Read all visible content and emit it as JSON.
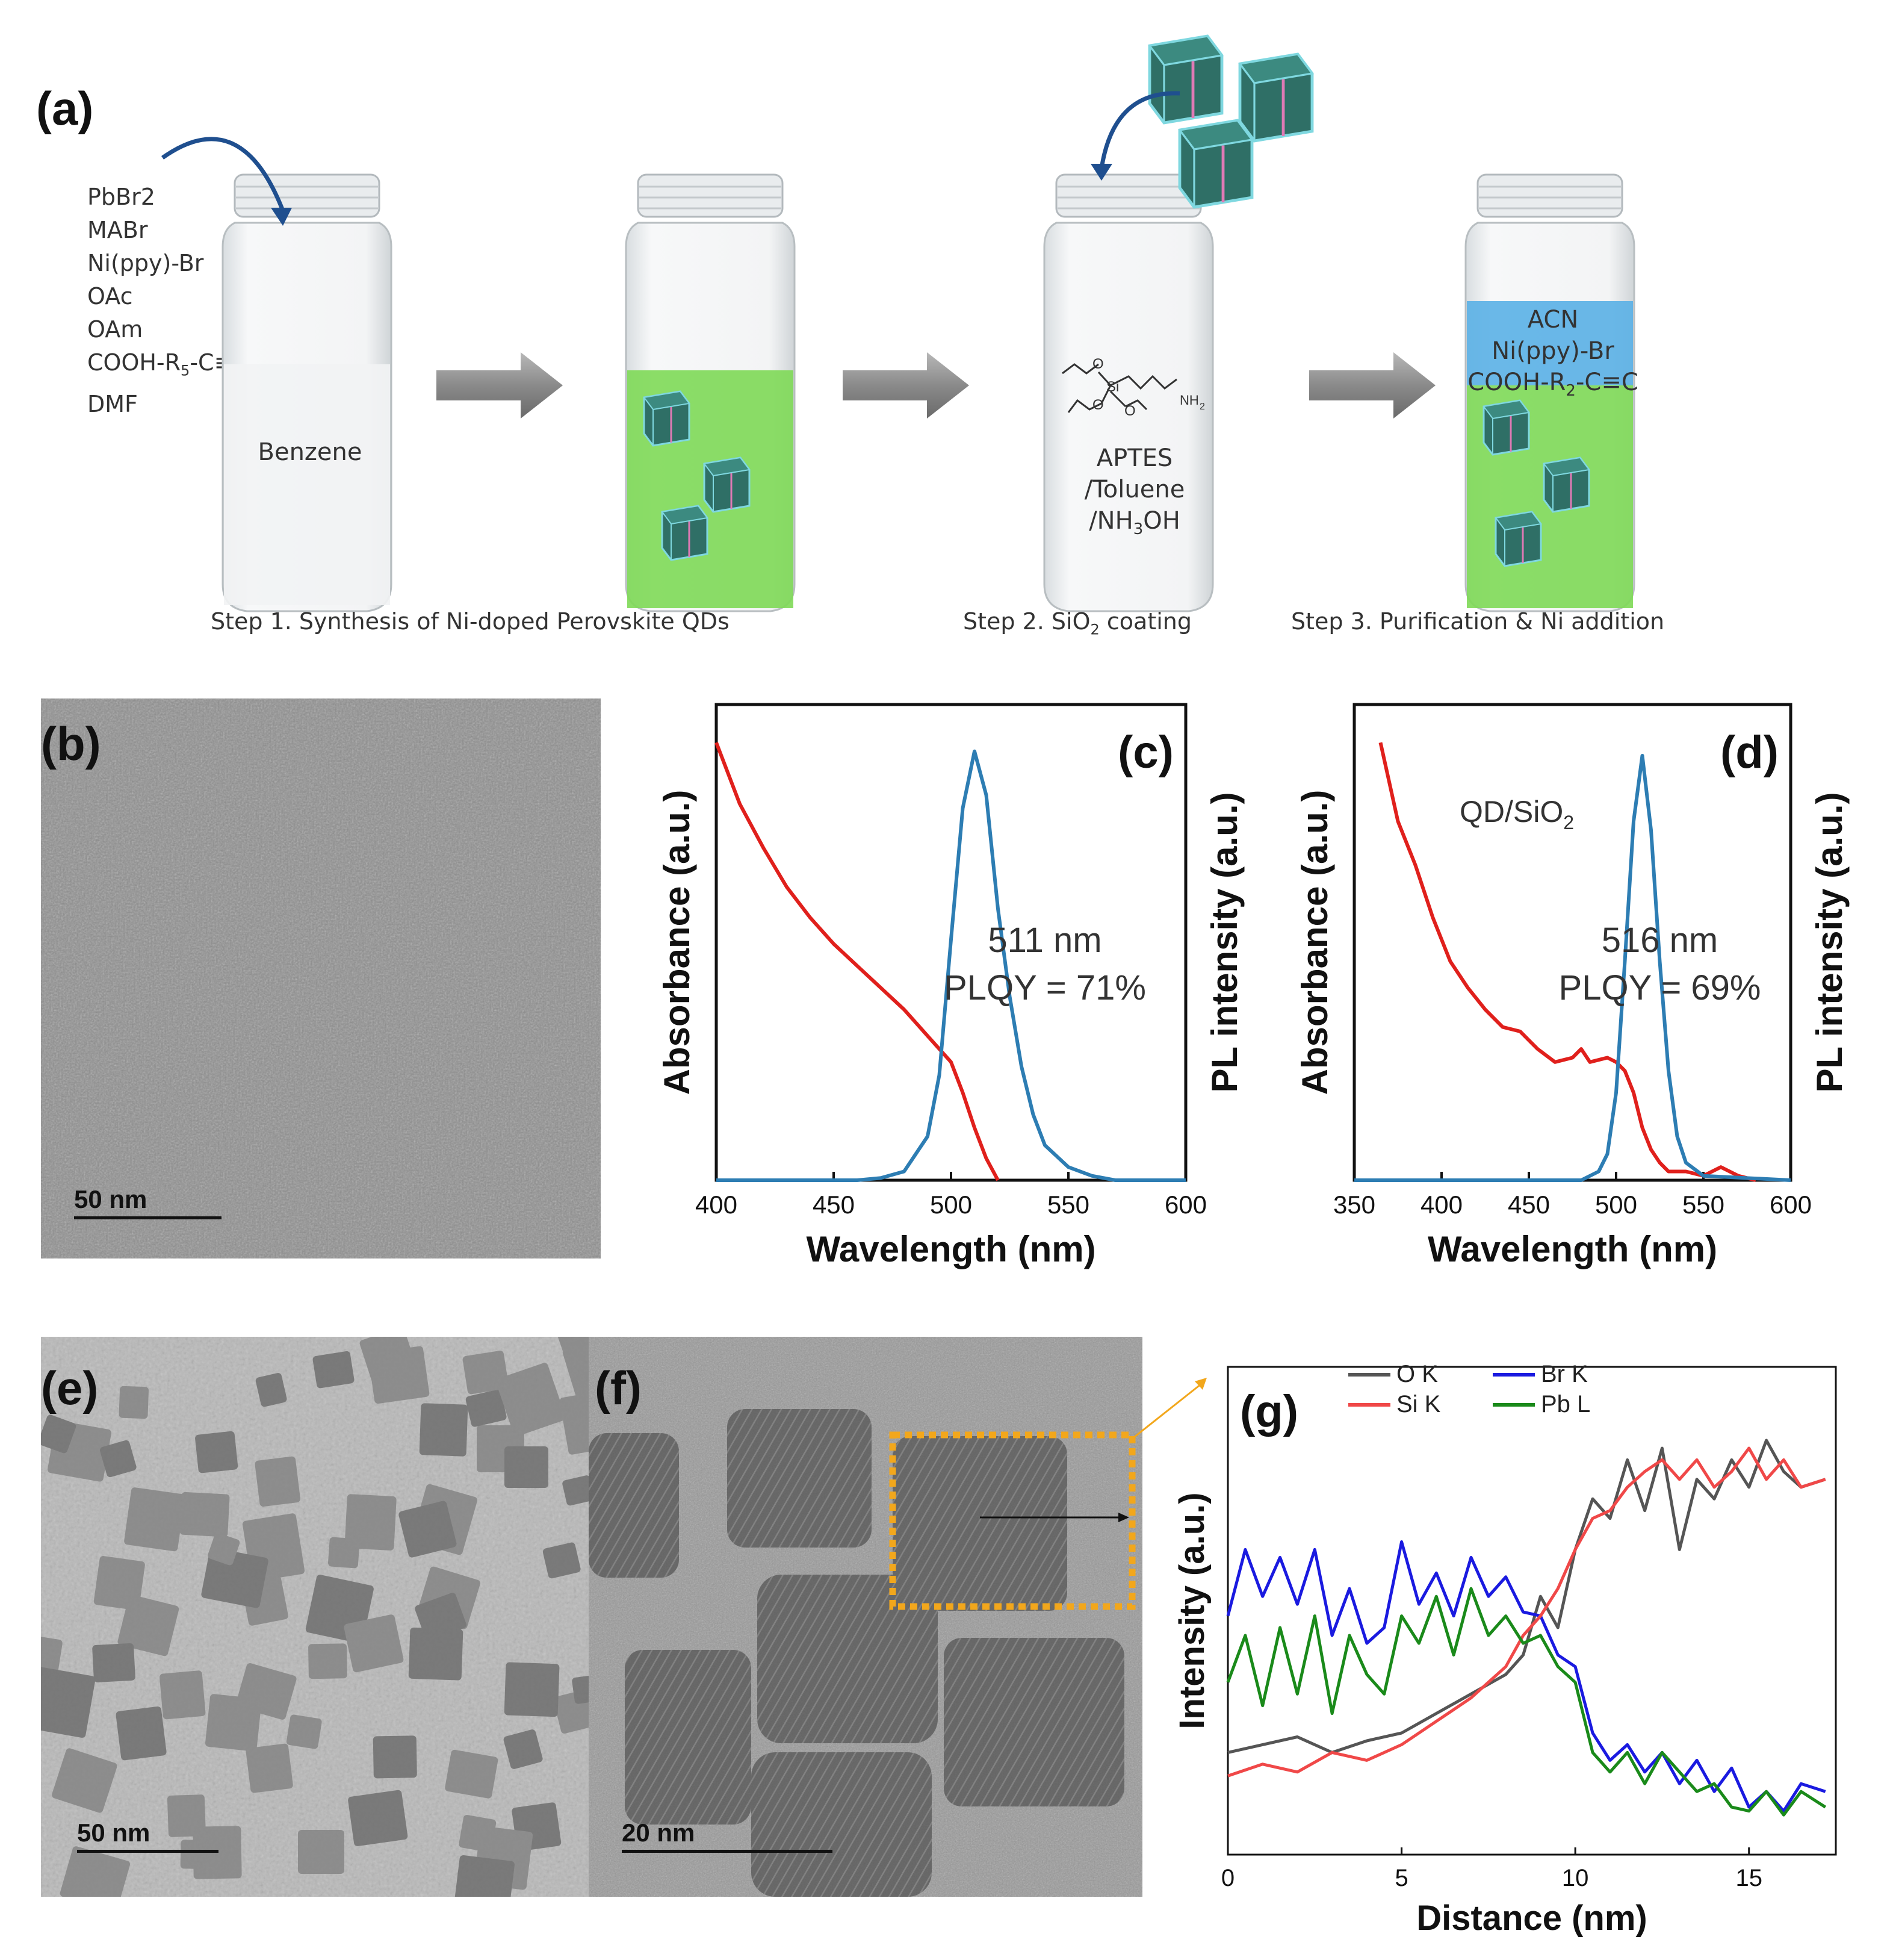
{
  "panel_a": {
    "letter": "(a)",
    "reagents": [
      "PbBr2",
      "MABr",
      "Ni(ppy)-Br",
      "OAc",
      "OAm",
      "COOH-R",
      "DMF"
    ],
    "reagent_cooh_sub": "5",
    "reagent_cooh_tail": "-C≡C",
    "vial1_label": "Benzene",
    "vial3_lines": [
      "APTES",
      "/Toluene",
      "/NH"
    ],
    "vial3_sub": "3",
    "vial3_tail": "OH",
    "vial4_lines": [
      "ACN",
      "Ni(ppy)-Br",
      "COOH-R"
    ],
    "vial4_sub": "2",
    "vial4_tail": "-C≡C",
    "step1": "Step 1. Synthesis of Ni-doped Perovskite QDs",
    "step2_pre": "Step 2. SiO",
    "step2_sub": "2",
    "step2_post": " coating",
    "step3": "Step 3. Purification & Ni addition",
    "colors": {
      "green_liquid": "#7ed957",
      "blue_layer": "#5ab0e6",
      "arrow": "#1f4f8f"
    }
  },
  "panel_b": {
    "letter": "(b)",
    "scale": "50 nm"
  },
  "panel_e": {
    "letter": "(e)",
    "scale": "50 nm"
  },
  "panel_f": {
    "letter": "(f)",
    "scale": "20 nm"
  },
  "chart_data": [
    {
      "id": "c",
      "type": "line",
      "letter": "(c)",
      "xlabel": "Wavelength (nm)",
      "ylabel_left": "Absorbance (a.u.)",
      "ylabel_right": "PL intensity (a.u.)",
      "xlim": [
        400,
        600
      ],
      "xticks": [
        "400",
        "450",
        "500",
        "550",
        "600"
      ],
      "annotation": [
        "511 nm",
        "PLQY = 71%"
      ],
      "series": [
        {
          "color": "#e0201c",
          "x": [
            400,
            410,
            420,
            430,
            440,
            450,
            460,
            470,
            480,
            490,
            495,
            500,
            505,
            510,
            515,
            520
          ],
          "y": [
            1.0,
            0.86,
            0.76,
            0.67,
            0.6,
            0.54,
            0.49,
            0.44,
            0.39,
            0.33,
            0.3,
            0.27,
            0.2,
            0.12,
            0.05,
            0.0
          ]
        },
        {
          "color": "#2d7db3",
          "x": [
            400,
            460,
            470,
            480,
            490,
            495,
            500,
            505,
            510,
            515,
            520,
            525,
            530,
            535,
            540,
            550,
            560,
            570,
            600
          ],
          "y": [
            0,
            0,
            0.005,
            0.02,
            0.1,
            0.24,
            0.55,
            0.85,
            0.98,
            0.88,
            0.62,
            0.42,
            0.26,
            0.15,
            0.08,
            0.03,
            0.01,
            0,
            0
          ]
        }
      ]
    },
    {
      "id": "d",
      "type": "line",
      "letter": "(d)",
      "legend_pre": "QD/SiO",
      "legend_sub": "2",
      "xlabel": "Wavelength (nm)",
      "ylabel_left": "Absorbance (a.u.)",
      "ylabel_right": "PL intensity (a.u.)",
      "xlim": [
        350,
        600
      ],
      "xticks": [
        "350",
        "400",
        "450",
        "500",
        "550",
        "600"
      ],
      "annotation": [
        "516 nm",
        "PLQY = 69%"
      ],
      "series": [
        {
          "color": "#e0201c",
          "x": [
            365,
            375,
            385,
            395,
            405,
            415,
            425,
            435,
            445,
            455,
            465,
            475,
            480,
            485,
            495,
            500,
            505,
            510,
            515,
            520,
            525,
            530,
            540,
            550,
            560,
            570,
            580
          ],
          "y": [
            1.0,
            0.82,
            0.72,
            0.6,
            0.5,
            0.44,
            0.39,
            0.35,
            0.34,
            0.3,
            0.27,
            0.28,
            0.3,
            0.27,
            0.28,
            0.27,
            0.25,
            0.2,
            0.12,
            0.07,
            0.04,
            0.02,
            0.02,
            0.01,
            0.03,
            0.01,
            0.0
          ]
        },
        {
          "color": "#2d7db3",
          "x": [
            350,
            480,
            490,
            495,
            500,
            505,
            510,
            515,
            520,
            525,
            530,
            535,
            540,
            550,
            600
          ],
          "y": [
            0,
            0,
            0.02,
            0.06,
            0.2,
            0.5,
            0.82,
            0.97,
            0.8,
            0.5,
            0.25,
            0.1,
            0.04,
            0.01,
            0
          ]
        }
      ]
    },
    {
      "id": "g",
      "type": "line",
      "letter": "(g)",
      "xlabel": "Distance (nm)",
      "ylabel": "Intensity (a.u.)",
      "xlim": [
        0,
        17.5
      ],
      "xticks": [
        "0",
        "5",
        "10",
        "15"
      ],
      "legend": [
        "O  K",
        "Br K",
        "Si K",
        "Pb L"
      ],
      "series": [
        {
          "name": "O  K",
          "color": "#555555",
          "x": [
            0,
            1,
            2,
            3,
            4,
            5,
            6,
            7,
            8,
            8.5,
            9,
            9.5,
            10,
            10.5,
            11,
            11.5,
            12,
            12.5,
            13,
            13.5,
            14,
            14.5,
            15,
            15.5,
            16,
            16.5,
            17.2
          ],
          "y": [
            0.2,
            0.22,
            0.24,
            0.2,
            0.23,
            0.25,
            0.3,
            0.35,
            0.4,
            0.45,
            0.6,
            0.52,
            0.72,
            0.85,
            0.8,
            0.95,
            0.82,
            0.98,
            0.72,
            0.9,
            0.85,
            0.95,
            0.88,
            1.0,
            0.92,
            0.88,
            0.9
          ]
        },
        {
          "name": "Br K",
          "color": "#1a1ae0",
          "x": [
            0,
            0.5,
            1,
            1.5,
            2,
            2.5,
            3,
            3.5,
            4,
            4.5,
            5,
            5.5,
            6,
            6.5,
            7,
            7.5,
            8,
            8.5,
            9,
            9.5,
            10,
            10.5,
            11,
            11.5,
            12,
            12.5,
            13,
            13.5,
            14,
            14.5,
            15,
            15.5,
            16,
            16.5,
            17.2
          ],
          "y": [
            0.55,
            0.72,
            0.6,
            0.7,
            0.58,
            0.72,
            0.5,
            0.62,
            0.48,
            0.52,
            0.74,
            0.58,
            0.66,
            0.55,
            0.7,
            0.6,
            0.65,
            0.56,
            0.55,
            0.45,
            0.42,
            0.25,
            0.18,
            0.22,
            0.15,
            0.2,
            0.12,
            0.18,
            0.1,
            0.16,
            0.06,
            0.1,
            0.05,
            0.12,
            0.1
          ]
        },
        {
          "name": "Si K",
          "color": "#f04848",
          "x": [
            0,
            1,
            2,
            3,
            4,
            5,
            6,
            7,
            8,
            8.5,
            9,
            9.5,
            10,
            10.5,
            11,
            11.5,
            12,
            12.5,
            13,
            13.5,
            14,
            14.5,
            15,
            15.5,
            16,
            16.5,
            17.2
          ],
          "y": [
            0.14,
            0.17,
            0.15,
            0.2,
            0.18,
            0.22,
            0.28,
            0.34,
            0.42,
            0.5,
            0.55,
            0.62,
            0.72,
            0.8,
            0.82,
            0.88,
            0.92,
            0.95,
            0.9,
            0.95,
            0.88,
            0.92,
            0.98,
            0.9,
            0.95,
            0.88,
            0.9
          ]
        },
        {
          "name": "Pb L",
          "color": "#1a8a1a",
          "x": [
            0,
            0.5,
            1,
            1.5,
            2,
            2.5,
            3,
            3.5,
            4,
            4.5,
            5,
            5.5,
            6,
            6.5,
            7,
            7.5,
            8,
            8.5,
            9,
            9.5,
            10,
            10.5,
            11,
            11.5,
            12,
            12.5,
            13,
            13.5,
            14,
            14.5,
            15,
            15.5,
            16,
            16.5,
            17.2
          ],
          "y": [
            0.38,
            0.5,
            0.32,
            0.52,
            0.35,
            0.55,
            0.3,
            0.5,
            0.4,
            0.35,
            0.55,
            0.48,
            0.6,
            0.45,
            0.62,
            0.5,
            0.55,
            0.48,
            0.5,
            0.42,
            0.38,
            0.2,
            0.15,
            0.2,
            0.12,
            0.2,
            0.15,
            0.1,
            0.12,
            0.06,
            0.05,
            0.1,
            0.04,
            0.1,
            0.06
          ]
        }
      ]
    }
  ]
}
